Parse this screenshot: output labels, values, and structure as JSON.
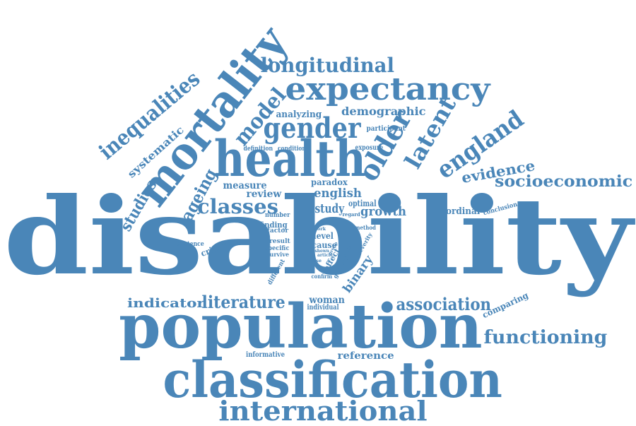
{
  "colors": {
    "word": "#4a86b8",
    "background": "#ffffff"
  },
  "words": [
    {
      "id": "disability",
      "text": "disability"
    },
    {
      "id": "population",
      "text": "population"
    },
    {
      "id": "classification",
      "text": "classification"
    },
    {
      "id": "health",
      "text": "health"
    },
    {
      "id": "mortality",
      "text": "mortality"
    },
    {
      "id": "expectancy",
      "text": "expectancy"
    },
    {
      "id": "international",
      "text": "international"
    },
    {
      "id": "gender",
      "text": "gender"
    },
    {
      "id": "longitudinal",
      "text": "longitudinal"
    },
    {
      "id": "older",
      "text": "older"
    },
    {
      "id": "england",
      "text": "england"
    },
    {
      "id": "inequalities",
      "text": "inequalities"
    },
    {
      "id": "functioning",
      "text": "functioning"
    },
    {
      "id": "socioeconomic",
      "text": "socioeconomic"
    },
    {
      "id": "latent",
      "text": "latent"
    },
    {
      "id": "classes",
      "text": "classes"
    },
    {
      "id": "association",
      "text": "association"
    },
    {
      "id": "literature",
      "text": "literature"
    },
    {
      "id": "model",
      "text": "model"
    },
    {
      "id": "evidence",
      "text": "evidence"
    },
    {
      "id": "ageing",
      "text": "ageing"
    },
    {
      "id": "studies",
      "text": "studies"
    },
    {
      "id": "indicator",
      "text": "indicator"
    },
    {
      "id": "demographic",
      "text": "demographic"
    },
    {
      "id": "growth",
      "text": "growth"
    },
    {
      "id": "study",
      "text": "study"
    },
    {
      "id": "english",
      "text": "english"
    },
    {
      "id": "binary",
      "text": "binary"
    },
    {
      "id": "systematic",
      "text": "systematic"
    },
    {
      "id": "measure",
      "text": "measure"
    },
    {
      "id": "review",
      "text": "review"
    },
    {
      "id": "reference",
      "text": "reference"
    },
    {
      "id": "woman",
      "text": "woman"
    },
    {
      "id": "paradox",
      "text": "paradox"
    },
    {
      "id": "analyzing",
      "text": "analyzing"
    },
    {
      "id": "ordinal",
      "text": "ordinal"
    },
    {
      "id": "comparing",
      "text": "comparing"
    },
    {
      "id": "criterion",
      "text": "criterion"
    },
    {
      "id": "optimal",
      "text": "optimal"
    },
    {
      "id": "level",
      "text": "level"
    },
    {
      "id": "cause",
      "text": "cause"
    },
    {
      "id": "effect",
      "text": "effect"
    },
    {
      "id": "finding",
      "text": "finding"
    },
    {
      "id": "individual",
      "text": "individual"
    },
    {
      "id": "informative",
      "text": "informative"
    },
    {
      "id": "participant",
      "text": "participant"
    },
    {
      "id": "exposure",
      "text": "exposure"
    },
    {
      "id": "definition",
      "text": "definition"
    },
    {
      "id": "condition",
      "text": "condition"
    },
    {
      "id": "number",
      "text": "number"
    },
    {
      "id": "factor",
      "text": "factor"
    },
    {
      "id": "result",
      "text": "result"
    },
    {
      "id": "specific",
      "text": "specific"
    },
    {
      "id": "survive",
      "text": "survive"
    },
    {
      "id": "existence",
      "text": "existence"
    },
    {
      "id": "different",
      "text": "different"
    },
    {
      "id": "general",
      "text": "general"
    },
    {
      "id": "confirm",
      "text": "confirm"
    },
    {
      "id": "severity",
      "text": "severity"
    },
    {
      "id": "method",
      "text": "method"
    },
    {
      "id": "conclusion",
      "text": "conclusion"
    },
    {
      "id": "regard",
      "text": "regard"
    },
    {
      "id": "work",
      "text": "work"
    },
    {
      "id": "article",
      "text": "article"
    },
    {
      "id": "lose",
      "text": "lose"
    },
    {
      "id": "shown",
      "text": "shown"
    },
    {
      "id": "group",
      "text": "group"
    },
    {
      "id": "state",
      "text": "state"
    }
  ]
}
